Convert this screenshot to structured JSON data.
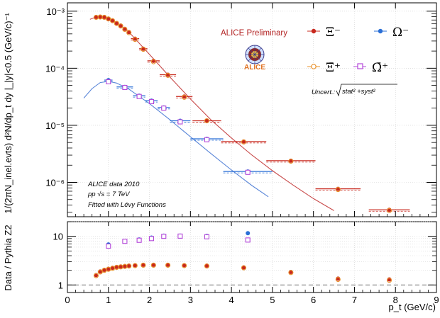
{
  "colors": {
    "xi_minus": "#c8281e",
    "xi_plus": "#e8902a",
    "omega_minus": "#2a6fd6",
    "omega_plus": "#b347d9",
    "fit_xi": "#c84a4a",
    "fit_omega": "#5a86d8",
    "brand": "#b22222"
  },
  "labels": {
    "brand": "ALICE Preliminary",
    "logo_text": "ALICE",
    "uncert": "Uncert.:",
    "uncert_formula": "stat² +syst²",
    "note1": "ALICE data 2010",
    "note2": "pp √s = 7 TeV",
    "note3": "Fitted with Lévy Functions",
    "legend": {
      "xi_minus": "Ξ⁻",
      "omega_minus": "Ω⁻",
      "xi_plus": "Ξ̄⁺",
      "omega_plus": "Ω̄⁺"
    }
  },
  "chart_data": [
    {
      "type": "scatter",
      "title": "",
      "xlabel": "p_t (GeV/c)",
      "ylabel": "1/(2πN_inel.evts) d²N/dp_t dy |_|y|<0.5 (GeV/c)⁻¹",
      "xlim": [
        0,
        9
      ],
      "ylim": [
        2.5e-07,
        0.0014
      ],
      "yscale": "log",
      "grid": true,
      "legend_position": "top-right",
      "y_tick_labels": [
        "10⁻³",
        "10⁻⁴",
        "10⁻⁵",
        "10⁻⁶"
      ],
      "y_ticks": [
        0.001,
        0.0001,
        1e-05,
        1e-06
      ],
      "series": [
        {
          "name": "Ξ⁻",
          "color_key": "xi_minus",
          "x": [
            0.7,
            0.8,
            0.9,
            1.0,
            1.1,
            1.2,
            1.3,
            1.4,
            1.5,
            1.65,
            1.85,
            2.1,
            2.45,
            2.85,
            3.4,
            4.3,
            5.45,
            6.6,
            7.85
          ],
          "xerr": [
            0.05,
            0.05,
            0.05,
            0.05,
            0.05,
            0.05,
            0.05,
            0.05,
            0.05,
            0.1,
            0.1,
            0.15,
            0.2,
            0.2,
            0.35,
            0.55,
            0.6,
            0.55,
            0.5
          ],
          "y": [
            0.00079,
            0.0008,
            0.00079,
            0.00074,
            0.00069,
            0.00062,
            0.00056,
            0.00049,
            0.00043,
            0.00033,
            0.00022,
            0.000135,
            7.7e-05,
            3.2e-05,
            1.2e-05,
            5.2e-06,
            2.4e-06,
            7.7e-07,
            3.3e-07
          ]
        },
        {
          "name": "Ξ̄⁺",
          "color_key": "xi_plus",
          "x": [
            0.7,
            0.8,
            0.9,
            1.0,
            1.1,
            1.2,
            1.3,
            1.4,
            1.5,
            1.65,
            1.85,
            2.1,
            2.45,
            2.85,
            3.4,
            4.3,
            5.45,
            6.6,
            7.85
          ],
          "y": [
            0.00078,
            0.00079,
            0.00078,
            0.00073,
            0.00068,
            0.00061,
            0.00055,
            0.00048,
            0.00042,
            0.00032,
            0.000215,
            0.00013,
            7.5e-05,
            3.1e-05,
            1.2e-05,
            5.1e-06,
            2.35e-06,
            7.5e-07,
            3.2e-07
          ]
        },
        {
          "name": "Ω⁻",
          "color_key": "omega_minus",
          "x": [
            1.0,
            1.4,
            1.75,
            2.05,
            2.35,
            2.75,
            3.4,
            4.4
          ],
          "xerr": [
            0.1,
            0.2,
            0.15,
            0.15,
            0.15,
            0.25,
            0.4,
            0.6
          ],
          "y": [
            6.2e-05,
            4.7e-05,
            3.3e-05,
            2.7e-05,
            2.05e-05,
            1.2e-05,
            5.8e-06,
            1.55e-06
          ]
        },
        {
          "name": "Ω̄⁺",
          "color_key": "omega_plus",
          "x": [
            1.0,
            1.4,
            1.75,
            2.05,
            2.35,
            2.75,
            3.4,
            4.4
          ],
          "y": [
            5.8e-05,
            4.6e-05,
            3.2e-05,
            2.6e-05,
            2e-05,
            1.15e-05,
            5.6e-06,
            1.5e-06
          ]
        }
      ],
      "fits": [
        {
          "name": "Lévy fit Ξ",
          "color_key": "fit_xi",
          "x": [
            0.55,
            0.7,
            0.8,
            1.0,
            1.2,
            1.5,
            2.0,
            2.5,
            3.0,
            3.5,
            4.0,
            4.5,
            5.0,
            5.5,
            6.0,
            6.5,
            7.0,
            7.5,
            8.0,
            8.5
          ],
          "y": [
            0.00072,
            0.00079,
            0.0008,
            0.00075,
            0.00063,
            0.00043,
            0.000175,
            7e-05,
            2.9e-05,
            1.25e-05,
            6e-06,
            3e-06,
            1.6e-06,
            9e-07,
            5.2e-07,
            3.2e-07,
            2.05e-07,
            1.35e-07,
            9e-08,
            6.2e-08
          ]
        },
        {
          "name": "Lévy fit Ω",
          "color_key": "fit_omega",
          "x": [
            0.4,
            0.6,
            0.8,
            1.0,
            1.2,
            1.5,
            2.0,
            2.5,
            3.0,
            3.5,
            4.0,
            4.5,
            4.9
          ],
          "y": [
            3e-05,
            4.4e-05,
            5.6e-05,
            5.9e-05,
            5.5e-05,
            4.3e-05,
            2.4e-05,
            1.25e-05,
            6.3e-06,
            3.2e-06,
            1.65e-06,
            8.8e-07,
            5.6e-07
          ]
        }
      ]
    },
    {
      "type": "scatter",
      "title": "",
      "xlabel": "p_t (GeV/c)",
      "ylabel": "Data / Pythia Z2",
      "xlim": [
        0,
        9
      ],
      "ylim": [
        0.7,
        20
      ],
      "yscale": "log",
      "grid": true,
      "x_ticks": [
        0,
        1,
        2,
        3,
        4,
        5,
        6,
        7,
        8,
        9
      ],
      "x_tick_labels": [
        "0",
        "1",
        "2",
        "3",
        "4",
        "5",
        "6",
        "7",
        "8",
        "9"
      ],
      "y_ticks": [
        1,
        10
      ],
      "y_tick_labels": [
        "1",
        "10"
      ],
      "reference_line": 1,
      "series": [
        {
          "name": "Ξ⁻",
          "color_key": "xi_minus",
          "x": [
            0.7,
            0.8,
            0.9,
            1.0,
            1.1,
            1.2,
            1.3,
            1.4,
            1.5,
            1.65,
            1.85,
            2.1,
            2.45,
            2.85,
            3.4,
            4.3,
            5.45,
            6.6,
            7.85
          ],
          "y": [
            1.6,
            1.9,
            2.05,
            2.15,
            2.25,
            2.35,
            2.4,
            2.45,
            2.5,
            2.55,
            2.6,
            2.6,
            2.6,
            2.55,
            2.5,
            2.3,
            1.85,
            1.35,
            1.3
          ]
        },
        {
          "name": "Ξ̄⁺",
          "color_key": "xi_plus",
          "x": [
            0.7,
            0.8,
            0.9,
            1.0,
            1.1,
            1.2,
            1.3,
            1.4,
            1.5,
            1.65,
            1.85,
            2.1,
            2.45,
            2.85,
            3.4,
            4.3,
            5.45,
            6.6,
            7.85
          ],
          "y": [
            1.55,
            1.85,
            2.0,
            2.1,
            2.2,
            2.3,
            2.35,
            2.4,
            2.45,
            2.5,
            2.55,
            2.55,
            2.55,
            2.5,
            2.45,
            2.25,
            1.8,
            1.3,
            1.25
          ]
        },
        {
          "name": "Ω⁻",
          "color_key": "omega_minus",
          "x": [
            1.0,
            1.4,
            1.75,
            2.05,
            2.35,
            2.75,
            3.4,
            4.4
          ],
          "y": [
            6.8,
            8.0,
            8.6,
            9.4,
            10.3,
            10.3,
            10.2,
            11.6
          ]
        },
        {
          "name": "Ω̄⁺",
          "color_key": "omega_plus",
          "x": [
            1.0,
            1.4,
            1.75,
            2.05,
            2.35,
            2.75,
            3.4,
            4.4
          ],
          "y": [
            6.3,
            7.9,
            8.3,
            9.0,
            10.0,
            10.1,
            9.8,
            8.4
          ]
        }
      ]
    }
  ]
}
